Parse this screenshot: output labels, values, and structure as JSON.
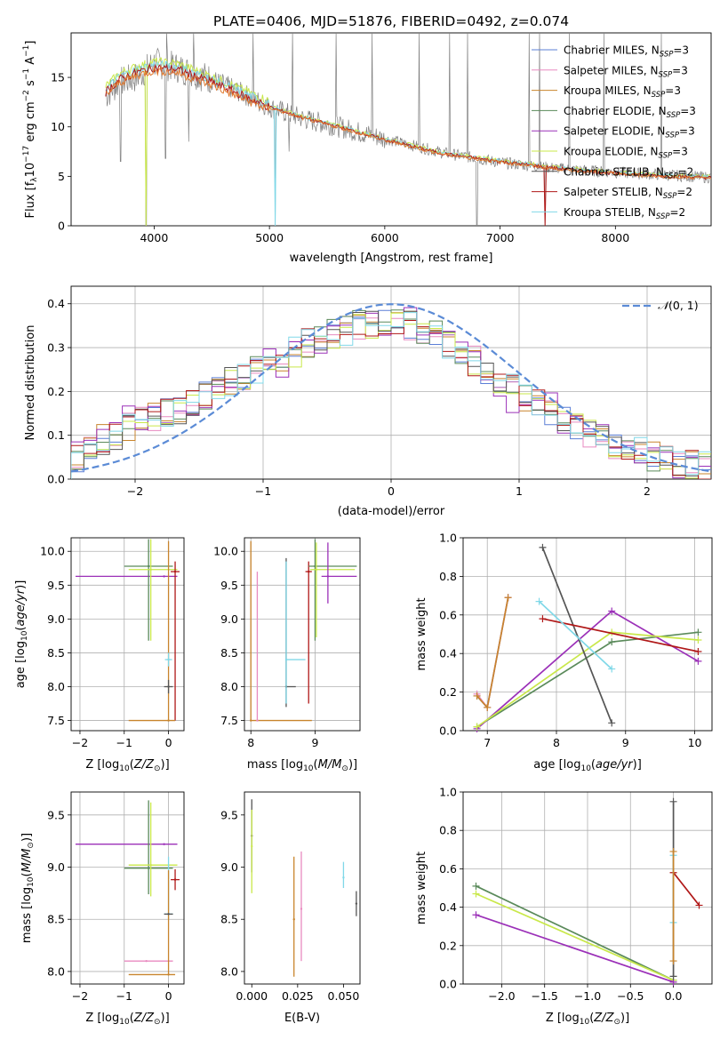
{
  "figure_title": "PLATE=0406, MJD=51876, FIBERID=0492, z=0.074",
  "colors": {
    "Chabrier MILES": "#5b7fd6",
    "Salpeter MILES": "#e88ac0",
    "Kroupa MILES": "#c8842c",
    "Chabrier ELODIE": "#5a8a5a",
    "Salpeter ELODIE": "#9b30b8",
    "Kroupa ELODIE": "#c9e84a",
    "Chabrier STELIB": "#555555",
    "Salpeter STELIB": "#b01818",
    "Kroupa STELIB": "#80d8e8",
    "MILES fit overlay": "#e07a30",
    "observed spectrum": "#808080",
    "normal curve": "#5b8bd6"
  },
  "chart_data": [
    {
      "id": "spectrum",
      "type": "line",
      "xlabel": "wavelength [Angstrom, rest frame]",
      "ylabel": "Flux [f_λ10^-17 erg cm^-2 s^-1 A^-1]",
      "xlim": [
        3280,
        8830
      ],
      "ylim": [
        0,
        19.5
      ],
      "xticks": [
        4000,
        5000,
        6000,
        7000,
        8000
      ],
      "yticks": [
        0,
        5,
        10,
        15
      ],
      "grid": false,
      "legend_position": "top-right",
      "legend": [
        "Chabrier MILES, N_SSP=3",
        "Salpeter MILES, N_SSP=3",
        "Kroupa MILES, N_SSP=3",
        "Chabrier ELODIE, N_SSP=3",
        "Salpeter ELODIE, N_SSP=3",
        "Kroupa ELODIE, N_SSP=3",
        "Chabrier STELIB, N_SSP=2",
        "Salpeter STELIB, N_SSP=2",
        "Kroupa STELIB, N_SSP=2"
      ],
      "observed_continuum": [
        [
          3580,
          13.2
        ],
        [
          3700,
          14.5
        ],
        [
          3850,
          15.0
        ],
        [
          4000,
          16.5
        ],
        [
          4200,
          16.0
        ],
        [
          4500,
          14.8
        ],
        [
          4800,
          13.2
        ],
        [
          5000,
          12.0
        ],
        [
          5300,
          10.8
        ],
        [
          5600,
          10.0
        ],
        [
          6000,
          8.8
        ],
        [
          6500,
          7.4
        ],
        [
          7000,
          6.4
        ],
        [
          7500,
          5.8
        ],
        [
          8000,
          5.4
        ],
        [
          8500,
          5.1
        ],
        [
          8800,
          4.9
        ]
      ],
      "emission_spikes": [
        [
          4110,
          19.5
        ],
        [
          4340,
          19.5
        ],
        [
          4860,
          19.5
        ],
        [
          5200,
          19.5
        ],
        [
          5580,
          19.5
        ],
        [
          5890,
          19.5
        ],
        [
          6300,
          19.5
        ],
        [
          6560,
          19.5
        ],
        [
          6720,
          19.5
        ],
        [
          7250,
          19.5
        ],
        [
          7340,
          19.5
        ],
        [
          7600,
          19.5
        ],
        [
          7900,
          19.5
        ],
        [
          8400,
          19.5
        ]
      ],
      "absorption_dips": [
        [
          3710,
          6.5
        ],
        [
          3930,
          0
        ],
        [
          4100,
          6.8
        ],
        [
          4300,
          8.5
        ],
        [
          5050,
          0
        ],
        [
          5170,
          7.5
        ],
        [
          5890,
          7.8
        ],
        [
          6800,
          0
        ],
        [
          7390,
          0
        ]
      ],
      "model_continuum": [
        [
          3580,
          13.5
        ],
        [
          3700,
          14.8
        ],
        [
          3850,
          15.5
        ],
        [
          4000,
          16.0
        ],
        [
          4200,
          15.8
        ],
        [
          4500,
          14.5
        ],
        [
          4800,
          13.0
        ],
        [
          5000,
          12.0
        ],
        [
          5300,
          10.9
        ],
        [
          5600,
          10.0
        ],
        [
          6000,
          8.7
        ],
        [
          6500,
          7.3
        ],
        [
          7000,
          6.5
        ],
        [
          7500,
          5.8
        ],
        [
          8000,
          5.3
        ],
        [
          8500,
          5.0
        ],
        [
          8830,
          4.85
        ]
      ]
    },
    {
      "id": "residuals",
      "type": "histogram",
      "xlabel": "(data-model)/error",
      "ylabel": "Normed distribution",
      "xlim": [
        -2.5,
        2.5
      ],
      "ylim": [
        0,
        0.44
      ],
      "xticks": [
        -2,
        -1,
        0,
        1,
        2
      ],
      "yticks": [
        0.0,
        0.1,
        0.2,
        0.3,
        0.4
      ],
      "grid": true,
      "legend_position": "top-right",
      "legend": [
        "N(0, 1)"
      ],
      "bins": {
        "start": -2.5,
        "width": 0.1,
        "count": 50
      },
      "series_envelope": [
        0.05,
        0.07,
        0.09,
        0.1,
        0.12,
        0.13,
        0.14,
        0.15,
        0.16,
        0.18,
        0.19,
        0.21,
        0.22,
        0.23,
        0.25,
        0.26,
        0.28,
        0.29,
        0.31,
        0.32,
        0.33,
        0.34,
        0.35,
        0.35,
        0.36,
        0.36,
        0.35,
        0.34,
        0.33,
        0.31,
        0.29,
        0.27,
        0.25,
        0.23,
        0.21,
        0.19,
        0.17,
        0.15,
        0.13,
        0.12,
        0.1,
        0.09,
        0.08,
        0.07,
        0.06,
        0.05,
        0.05,
        0.04,
        0.035,
        0.03
      ],
      "normal_curve": {
        "mean": 0,
        "std": 1
      }
    },
    {
      "id": "age_vs_Z",
      "type": "errorbar",
      "xlabel": "Z [log10(Z/Z☉)]",
      "ylabel": "age [log10(age/yr)]",
      "xlim": [
        -2.2,
        0.35
      ],
      "ylim": [
        7.35,
        10.2
      ],
      "xticks": [
        -2,
        -1,
        0
      ],
      "yticks": [
        7.5,
        8.0,
        8.5,
        9.0,
        9.5,
        10.0
      ],
      "grid": true,
      "points": [
        {
          "model": "Salpeter ELODIE",
          "x": -0.1,
          "y": 9.63,
          "xerr": [
            2.0,
            0.3
          ],
          "yerr": [
            0,
            0
          ]
        },
        {
          "model": "Chabrier ELODIE",
          "x": -0.45,
          "y": 9.78,
          "xerr": [
            0.55,
            0.55
          ],
          "yerr": [
            1.1,
            0.4
          ]
        },
        {
          "model": "Kroupa ELODIE",
          "x": -0.4,
          "y": 9.73,
          "xerr": [
            0.5,
            0.6
          ],
          "yerr": [
            1.05,
            0.45
          ]
        },
        {
          "model": "Salpeter STELIB",
          "x": 0.15,
          "y": 9.7,
          "xerr": [
            0.1,
            0.1
          ],
          "yerr": [
            2.2,
            0.15
          ]
        },
        {
          "model": "Kroupa MILES",
          "x": 0.0,
          "y": 7.5,
          "xerr": [
            0.9,
            0.15
          ],
          "yerr": [
            0,
            2.65
          ]
        },
        {
          "model": "Kroupa STELIB",
          "x": 0.0,
          "y": 8.4,
          "xerr": [
            0.08,
            0.08
          ],
          "yerr": [
            0.1,
            0.1
          ]
        },
        {
          "model": "Chabrier STELIB",
          "x": 0.0,
          "y": 8.0,
          "xerr": [
            0.1,
            0.1
          ],
          "yerr": [
            0.1,
            0.1
          ]
        }
      ]
    },
    {
      "id": "age_vs_mass",
      "type": "errorbar",
      "xlabel": "mass [log10(M/M☉)]",
      "ylabel": "",
      "xlim": [
        7.9,
        9.7
      ],
      "ylim": [
        7.35,
        10.2
      ],
      "xticks": [
        8,
        9
      ],
      "yticks": [
        7.5,
        8.0,
        8.5,
        9.0,
        9.5,
        10.0
      ],
      "grid": true,
      "points": [
        {
          "model": "Kroupa MILES",
          "x": 8.0,
          "y": 7.5,
          "xerr": [
            0,
            0.95
          ],
          "yerr": [
            0,
            2.65
          ]
        },
        {
          "model": "Salpeter MILES",
          "x": 8.1,
          "y": 7.5,
          "xerr": [
            0,
            0
          ],
          "yerr": [
            0,
            2.2
          ]
        },
        {
          "model": "Chabrier STELIB",
          "x": 8.55,
          "y": 8.0,
          "xerr": [
            0,
            0.15
          ],
          "yerr": [
            0.3,
            1.9
          ]
        },
        {
          "model": "Kroupa STELIB",
          "x": 8.55,
          "y": 8.4,
          "xerr": [
            0,
            0.3
          ],
          "yerr": [
            0.65,
            1.45
          ]
        },
        {
          "model": "Salpeter STELIB",
          "x": 8.9,
          "y": 9.7,
          "xerr": [
            0.05,
            0.05
          ],
          "yerr": [
            1.95,
            0.15
          ]
        },
        {
          "model": "Chabrier ELODIE",
          "x": 9.0,
          "y": 9.78,
          "xerr": [
            0.1,
            0.65
          ],
          "yerr": [
            1.1,
            0.4
          ]
        },
        {
          "model": "Kroupa ELODIE",
          "x": 9.02,
          "y": 9.73,
          "xerr": [
            0.1,
            0.6
          ],
          "yerr": [
            1.0,
            0.4
          ]
        },
        {
          "model": "Salpeter ELODIE",
          "x": 9.2,
          "y": 9.63,
          "xerr": [
            0.1,
            0.45
          ],
          "yerr": [
            0.4,
            0.5
          ]
        }
      ]
    },
    {
      "id": "weight_vs_age",
      "type": "line",
      "xlabel": "age [log10(age/yr)]",
      "ylabel": "mass weight",
      "xlim": [
        6.65,
        10.25
      ],
      "ylim": [
        0,
        1.0
      ],
      "xticks": [
        7,
        8,
        9,
        10
      ],
      "yticks": [
        0.0,
        0.2,
        0.4,
        0.6,
        0.8,
        1.0
      ],
      "grid": true,
      "series": [
        {
          "model": "Chabrier MILES",
          "x": [
            6.85,
            7.0,
            7.3
          ],
          "y": [
            0.18,
            0.12,
            0.69
          ]
        },
        {
          "model": "Salpeter MILES",
          "x": [
            6.85,
            7.0,
            7.3
          ],
          "y": [
            0.19,
            0.12,
            0.69
          ]
        },
        {
          "model": "Kroupa MILES",
          "x": [
            6.85,
            7.0,
            7.3
          ],
          "y": [
            0.18,
            0.12,
            0.69
          ]
        },
        {
          "model": "Chabrier ELODIE",
          "x": [
            6.85,
            8.8,
            10.05
          ],
          "y": [
            0.02,
            0.46,
            0.51
          ]
        },
        {
          "model": "Salpeter ELODIE",
          "x": [
            6.85,
            8.8,
            10.05
          ],
          "y": [
            0.01,
            0.62,
            0.36
          ]
        },
        {
          "model": "Kroupa ELODIE",
          "x": [
            6.85,
            8.8,
            10.05
          ],
          "y": [
            0.02,
            0.51,
            0.47
          ]
        },
        {
          "model": "Chabrier STELIB",
          "x": [
            7.8,
            8.8
          ],
          "y": [
            0.95,
            0.04
          ]
        },
        {
          "model": "Salpeter STELIB",
          "x": [
            7.8,
            10.05
          ],
          "y": [
            0.58,
            0.41
          ]
        },
        {
          "model": "Kroupa STELIB",
          "x": [
            7.75,
            8.8
          ],
          "y": [
            0.67,
            0.32
          ]
        }
      ]
    },
    {
      "id": "mass_vs_Z",
      "type": "errorbar",
      "xlabel": "Z [log10(Z/Z☉)]",
      "ylabel": "mass [log10(M/M☉)]",
      "xlim": [
        -2.2,
        0.35
      ],
      "ylim": [
        7.88,
        9.72
      ],
      "xticks": [
        -2,
        -1,
        0
      ],
      "yticks": [
        8.0,
        8.5,
        9.0,
        9.5
      ],
      "grid": true,
      "points": [
        {
          "model": "Salpeter ELODIE",
          "x": -0.1,
          "y": 9.22,
          "xerr": [
            2.0,
            0.3
          ],
          "yerr": [
            0,
            0
          ]
        },
        {
          "model": "Chabrier ELODIE",
          "x": -0.45,
          "y": 8.99,
          "xerr": [
            0.55,
            0.55
          ],
          "yerr": [
            0.25,
            0.65
          ]
        },
        {
          "model": "Kroupa ELODIE",
          "x": -0.4,
          "y": 9.02,
          "xerr": [
            0.5,
            0.6
          ],
          "yerr": [
            0.3,
            0.6
          ]
        },
        {
          "model": "Salpeter MILES",
          "x": -0.5,
          "y": 8.1,
          "xerr": [
            0.5,
            0.6
          ],
          "yerr": [
            0,
            0
          ]
        },
        {
          "model": "Salpeter STELIB",
          "x": 0.15,
          "y": 8.88,
          "xerr": [
            0.1,
            0.1
          ],
          "yerr": [
            0.1,
            0.1
          ]
        },
        {
          "model": "Kroupa STELIB",
          "x": 0.0,
          "y": 8.55,
          "xerr": [
            0.1,
            0.1
          ],
          "yerr": [
            0.05,
            0.55
          ]
        },
        {
          "model": "Kroupa MILES",
          "x": 0.0,
          "y": 7.97,
          "xerr": [
            0.9,
            0.15
          ],
          "yerr": [
            0,
            1.0
          ]
        },
        {
          "model": "Chabrier STELIB",
          "x": 0.0,
          "y": 8.55,
          "xerr": [
            0.1,
            0.1
          ],
          "yerr": [
            0,
            0
          ]
        }
      ]
    },
    {
      "id": "mass_vs_EBV",
      "type": "errorbar",
      "xlabel": "E(B-V)",
      "ylabel": "",
      "xlim": [
        -0.004,
        0.059
      ],
      "ylim": [
        7.88,
        9.72
      ],
      "xticks": [
        0.0,
        0.025,
        0.05
      ],
      "yticks": [
        8.0,
        8.5,
        9.0,
        9.5
      ],
      "grid": false,
      "points": [
        {
          "model": "Chabrier STELIB",
          "x": 0.0,
          "y": 9.3,
          "xerr": [
            0,
            0
          ],
          "yerr": [
            0.35,
            0.35
          ]
        },
        {
          "model": "Kroupa ELODIE",
          "x": 0.0,
          "y": 9.2,
          "xerr": [
            0,
            0
          ],
          "yerr": [
            0.45,
            0.35
          ]
        },
        {
          "model": "Kroupa MILES",
          "x": 0.023,
          "y": 8.5,
          "xerr": [
            0,
            0
          ],
          "yerr": [
            0.55,
            0.6
          ]
        },
        {
          "model": "Salpeter MILES",
          "x": 0.027,
          "y": 8.6,
          "xerr": [
            0,
            0
          ],
          "yerr": [
            0.5,
            0.55
          ]
        },
        {
          "model": "Kroupa STELIB",
          "x": 0.05,
          "y": 8.9,
          "xerr": [
            0,
            0
          ],
          "yerr": [
            0.1,
            0.15
          ]
        },
        {
          "model": "Chabrier STELIB",
          "x": 0.057,
          "y": 8.65,
          "xerr": [
            0,
            0
          ],
          "yerr": [
            0.12,
            0.12
          ]
        }
      ]
    },
    {
      "id": "weight_vs_Z",
      "type": "line",
      "xlabel": "Z [log10(Z/Z☉)]",
      "ylabel": "mass weight",
      "xlim": [
        -2.45,
        0.45
      ],
      "ylim": [
        0,
        1.0
      ],
      "xticks": [
        -2.0,
        -1.5,
        -1.0,
        -0.5,
        0.0
      ],
      "yticks": [
        0.0,
        0.2,
        0.4,
        0.6,
        0.8,
        1.0
      ],
      "grid": true,
      "series": [
        {
          "model": "Chabrier ELODIE",
          "x": [
            -2.3,
            0.0
          ],
          "y": [
            0.51,
            0.02
          ]
        },
        {
          "model": "Kroupa ELODIE",
          "x": [
            -2.3,
            0.0
          ],
          "y": [
            0.47,
            0.02
          ]
        },
        {
          "model": "Salpeter ELODIE",
          "x": [
            -2.3,
            0.0
          ],
          "y": [
            0.36,
            0.01
          ]
        },
        {
          "model": "Salpeter STELIB",
          "x": [
            0.0,
            0.3
          ],
          "y": [
            0.58,
            0.41
          ]
        },
        {
          "model": "Chabrier STELIB",
          "x": [
            0.0,
            0.0
          ],
          "y": [
            0.95,
            0.04
          ]
        },
        {
          "model": "Kroupa STELIB",
          "x": [
            0.0,
            0.0
          ],
          "y": [
            0.67,
            0.32
          ]
        },
        {
          "model": "Kroupa MILES",
          "x": [
            0.0,
            0.0
          ],
          "y": [
            0.69,
            0.12
          ]
        }
      ]
    }
  ]
}
